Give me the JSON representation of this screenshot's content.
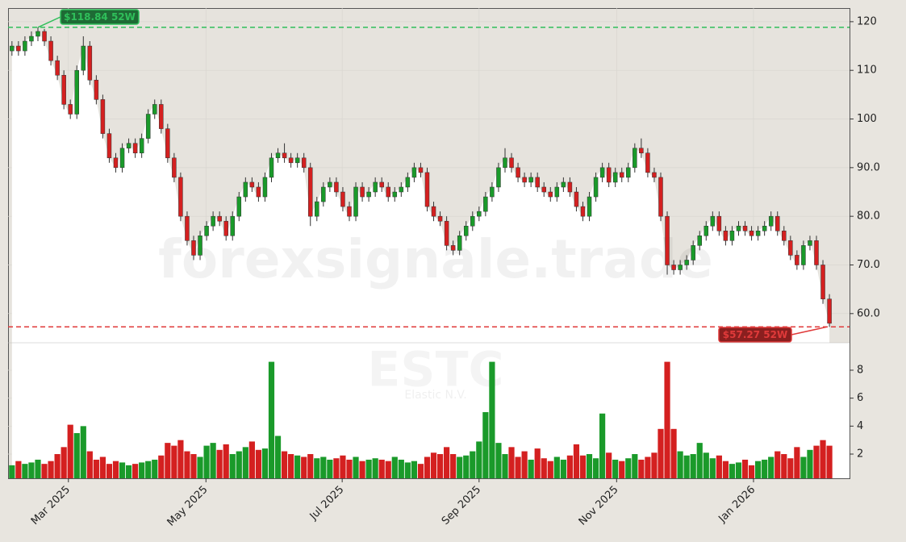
{
  "chart_data": {
    "type": "candlestick",
    "watermark": "forexsignale.trade",
    "symbol": "ESTC",
    "company": "Elastic N.V.",
    "x": [
      0,
      1,
      2,
      3,
      4,
      5,
      6,
      7,
      8,
      9,
      10,
      11,
      12,
      13,
      14,
      15,
      16,
      17,
      18,
      19,
      20,
      21,
      22,
      23,
      24,
      25,
      26,
      27,
      28,
      29,
      30,
      31,
      32,
      33,
      34,
      35,
      36,
      37,
      38,
      39,
      40,
      41,
      42,
      43,
      44,
      45,
      46,
      47,
      48,
      49,
      50,
      51,
      52,
      53,
      54,
      55,
      56,
      57,
      58,
      59,
      60,
      61,
      62,
      63,
      64,
      65,
      66,
      67,
      68,
      69,
      70,
      71,
      72,
      73,
      74,
      75,
      76,
      77,
      78,
      79,
      80,
      81,
      82,
      83,
      84,
      85,
      86,
      87,
      88,
      89,
      90,
      91,
      92,
      93,
      94,
      95,
      96,
      97,
      98,
      99,
      100,
      101,
      102,
      103,
      104,
      105,
      106,
      107,
      108,
      109,
      110,
      111,
      112,
      113,
      114,
      115,
      116,
      117,
      118,
      119,
      120,
      121,
      122,
      123,
      124,
      125,
      126
    ],
    "open": [
      114,
      115,
      114,
      116,
      117,
      118,
      116,
      112,
      109,
      103,
      101,
      110,
      115,
      108,
      104,
      97,
      92,
      90,
      94,
      95,
      93,
      96,
      101,
      103,
      98,
      92,
      88,
      80,
      75,
      72,
      76,
      78,
      80,
      79,
      76,
      80,
      84,
      87,
      86,
      84,
      88,
      92,
      93,
      92,
      91,
      92,
      90,
      80,
      83,
      86,
      87,
      85,
      82,
      80,
      86,
      84,
      85,
      87,
      86,
      84,
      85,
      86,
      88,
      90,
      89,
      82,
      80,
      79,
      74,
      73,
      76,
      78,
      80,
      81,
      84,
      86,
      90,
      92,
      90,
      88,
      87,
      88,
      86,
      85,
      84,
      86,
      87,
      85,
      82,
      80,
      84,
      88,
      90,
      87,
      89,
      88,
      90,
      94,
      93,
      89,
      88,
      80,
      70,
      69,
      70,
      71,
      74,
      76,
      78,
      80,
      77,
      75,
      77,
      78,
      77,
      76,
      77,
      78,
      80,
      77,
      75,
      72,
      70,
      74,
      75,
      70,
      63
    ],
    "high": [
      116,
      116,
      117,
      118,
      118.84,
      118.5,
      117,
      113,
      110,
      104,
      111,
      117,
      116,
      109,
      105,
      98,
      93,
      95,
      96,
      96,
      97,
      102,
      104,
      104,
      99,
      93,
      89,
      81,
      76,
      77,
      79,
      81,
      81,
      80,
      81,
      85,
      88,
      88,
      87,
      89,
      93,
      94,
      95,
      93,
      93,
      93,
      91,
      84,
      87,
      88,
      88,
      86,
      83,
      87,
      87,
      86,
      88,
      88,
      87,
      86,
      87,
      89,
      91,
      91,
      90,
      83,
      81,
      80,
      75,
      77,
      79,
      81,
      82,
      85,
      87,
      91,
      94,
      93,
      91,
      89,
      89,
      89,
      87,
      86,
      87,
      88,
      88,
      86,
      83,
      85,
      89,
      91,
      91,
      90,
      90,
      91,
      95,
      96,
      94,
      90,
      89,
      81,
      71,
      71,
      72,
      75,
      77,
      79,
      81,
      81,
      78,
      78,
      79,
      79,
      78,
      78,
      79,
      81,
      81,
      78,
      76,
      73,
      75,
      76,
      76,
      71,
      64
    ],
    "low": [
      113,
      113,
      113,
      115,
      116,
      115,
      111,
      108,
      102,
      100,
      100,
      109,
      107,
      103,
      96,
      91,
      89,
      89,
      93,
      92,
      92,
      95,
      100,
      97,
      91,
      87,
      79,
      74,
      71,
      71,
      75,
      77,
      78,
      75,
      75,
      79,
      83,
      85,
      83,
      83,
      87,
      91,
      91,
      90,
      90,
      89,
      78,
      79,
      82,
      85,
      84,
      81,
      79,
      79,
      83,
      83,
      84,
      85,
      83,
      83,
      84,
      85,
      87,
      88,
      81,
      79,
      78,
      73,
      72,
      72,
      75,
      77,
      79,
      80,
      83,
      85,
      89,
      89,
      87,
      86,
      86,
      85,
      84,
      83,
      83,
      85,
      84,
      81,
      79,
      79,
      83,
      87,
      86,
      86,
      87,
      87,
      89,
      92,
      88,
      87,
      79,
      68,
      68,
      68,
      69,
      70,
      73,
      75,
      77,
      76,
      74,
      74,
      76,
      76,
      75,
      75,
      76,
      77,
      76,
      74,
      71,
      69,
      69,
      73,
      69,
      62,
      57.27
    ],
    "close": [
      115,
      114,
      116,
      117,
      118,
      116,
      112,
      109,
      103,
      101,
      110,
      115,
      108,
      104,
      97,
      92,
      90,
      94,
      95,
      93,
      96,
      101,
      103,
      98,
      92,
      88,
      80,
      75,
      72,
      76,
      78,
      80,
      79,
      76,
      80,
      84,
      87,
      86,
      84,
      88,
      92,
      93,
      92,
      91,
      92,
      90,
      80,
      83,
      86,
      87,
      85,
      82,
      80,
      86,
      84,
      85,
      87,
      86,
      84,
      85,
      86,
      88,
      90,
      89,
      82,
      80,
      79,
      74,
      73,
      76,
      78,
      80,
      81,
      84,
      86,
      90,
      92,
      90,
      88,
      87,
      88,
      86,
      85,
      84,
      86,
      87,
      85,
      82,
      80,
      84,
      88,
      90,
      87,
      89,
      88,
      90,
      94,
      93,
      89,
      88,
      80,
      70,
      69,
      70,
      71,
      74,
      76,
      78,
      80,
      77,
      75,
      77,
      78,
      77,
      76,
      77,
      78,
      80,
      77,
      75,
      72,
      70,
      74,
      75,
      70,
      63,
      58
    ],
    "volume": [
      1.2,
      1.5,
      1.3,
      1.4,
      1.6,
      1.3,
      1.5,
      2.0,
      2.5,
      4.1,
      3.5,
      4.0,
      2.2,
      1.6,
      1.8,
      1.3,
      1.5,
      1.4,
      1.2,
      1.3,
      1.4,
      1.5,
      1.6,
      1.9,
      2.8,
      2.6,
      3.0,
      2.2,
      2.0,
      1.8,
      2.6,
      2.8,
      2.3,
      2.7,
      2.0,
      2.2,
      2.5,
      2.9,
      2.3,
      2.4,
      8.6,
      3.3,
      2.2,
      2.0,
      1.9,
      1.8,
      2.0,
      1.7,
      1.8,
      1.6,
      1.7,
      1.9,
      1.6,
      1.8,
      1.5,
      1.6,
      1.7,
      1.6,
      1.5,
      1.8,
      1.6,
      1.4,
      1.5,
      1.3,
      1.8,
      2.1,
      2.0,
      2.5,
      2.0,
      1.8,
      1.9,
      2.2,
      2.9,
      5.0,
      8.6,
      2.8,
      2.0,
      2.5,
      1.8,
      2.2,
      1.6,
      2.4,
      1.7,
      1.5,
      1.8,
      1.6,
      1.9,
      2.7,
      1.9,
      2.0,
      1.7,
      4.9,
      2.1,
      1.6,
      1.5,
      1.7,
      2.0,
      1.6,
      1.8,
      2.1,
      3.8,
      8.6,
      3.8,
      2.2,
      1.9,
      2.0,
      2.8,
      2.1,
      1.7,
      1.9,
      1.5,
      1.3,
      1.4,
      1.6,
      1.2,
      1.5,
      1.6,
      1.8,
      2.2,
      2.0,
      1.7,
      2.5,
      1.8,
      2.3,
      2.6,
      3.0,
      2.6
    ],
    "up_color": "#1a9a2a",
    "down_color": "#d42020",
    "xlim": [
      -0.6,
      129.1
    ],
    "xticks": [
      {
        "value": 8.7,
        "label": "Mar 2025"
      },
      {
        "value": 29.9,
        "label": "May 2025"
      },
      {
        "value": 50.9,
        "label": "Jul 2025"
      },
      {
        "value": 72.0,
        "label": "Sep 2025"
      },
      {
        "value": 93.2,
        "label": "Nov 2025"
      },
      {
        "value": 114.3,
        "label": "Jan 2026"
      }
    ],
    "ylim": [
      54,
      122.8
    ],
    "yticks": [
      {
        "value": 60,
        "label": "60.0"
      },
      {
        "value": 70,
        "label": "70.0"
      },
      {
        "value": 80,
        "label": "80.0"
      },
      {
        "value": 90,
        "label": "90.0"
      },
      100,
      110,
      120
    ],
    "volume_lim": [
      0.27,
      9.96
    ],
    "volume_ticks": [
      2,
      4,
      6,
      8
    ],
    "grid": true,
    "annotations": [
      {
        "text": "$118.84 52W",
        "value": 118.84,
        "color": "#2fbf5a"
      },
      {
        "text": "$57.27 52W",
        "value": 57.27,
        "color": "#e03a3a"
      }
    ]
  }
}
